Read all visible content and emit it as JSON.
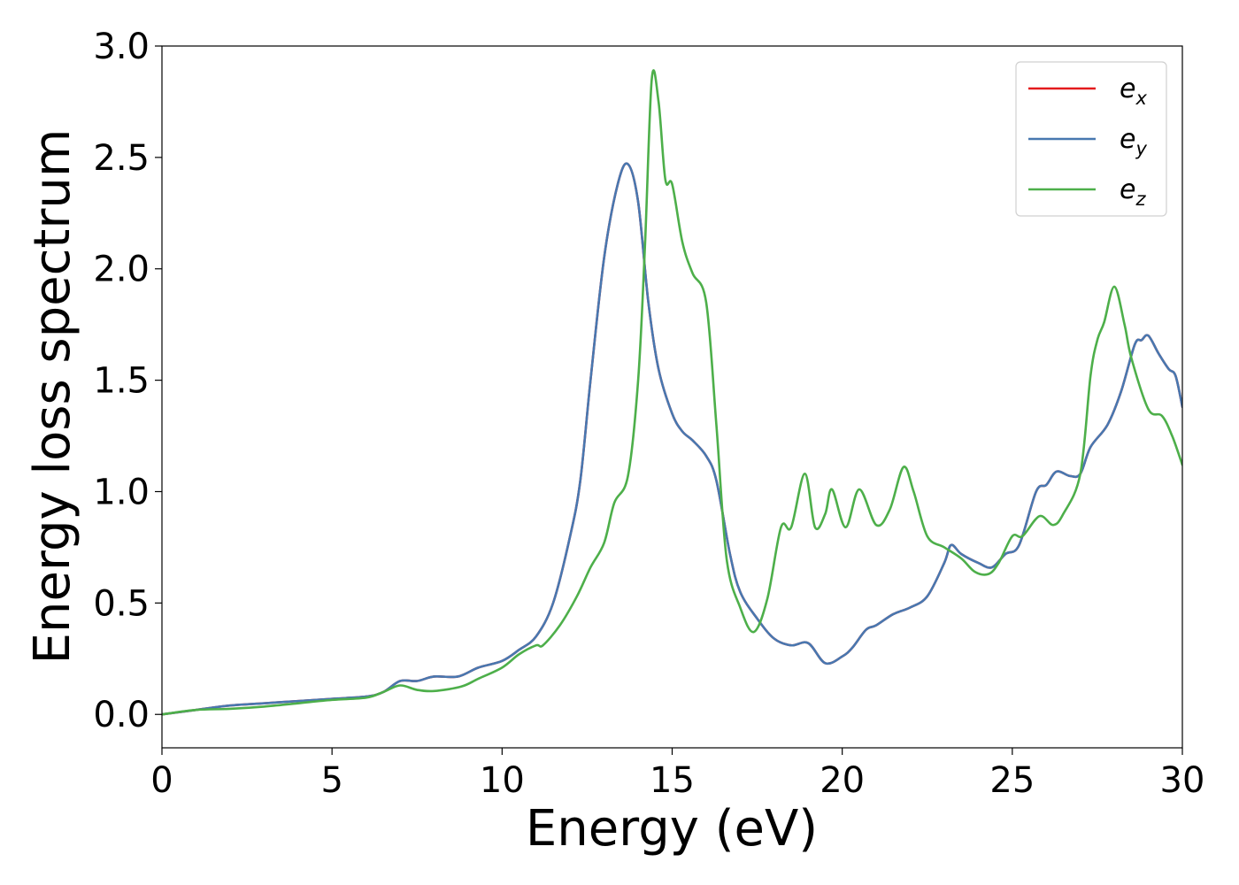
{
  "chart_data": {
    "type": "line",
    "title": "",
    "xlabel": "Energy (eV)",
    "ylabel": "Energy loss spectrum",
    "xlim": [
      0,
      30
    ],
    "ylim": [
      -0.15,
      3.0
    ],
    "xticks": [
      0,
      5,
      10,
      15,
      20,
      25,
      30
    ],
    "xtick_labels": [
      "0",
      "5",
      "10",
      "15",
      "20",
      "25",
      "30"
    ],
    "yticks": [
      0.0,
      0.5,
      1.0,
      1.5,
      2.0,
      2.5,
      3.0
    ],
    "ytick_labels": [
      "0.0",
      "0.5",
      "1.0",
      "1.5",
      "2.0",
      "2.5",
      "3.0"
    ],
    "grid": false,
    "legend_position": "top-right",
    "series": [
      {
        "name": "e",
        "subscript": "x",
        "color": "#e41a1c",
        "points": [
          [
            0,
            0
          ],
          [
            1,
            0.02
          ],
          [
            2,
            0.04
          ],
          [
            3,
            0.05
          ],
          [
            4,
            0.06
          ],
          [
            5,
            0.07
          ],
          [
            6,
            0.08
          ],
          [
            6.5,
            0.1
          ],
          [
            7,
            0.15
          ],
          [
            7.5,
            0.15
          ],
          [
            8,
            0.17
          ],
          [
            8.7,
            0.17
          ],
          [
            9.3,
            0.21
          ],
          [
            10,
            0.24
          ],
          [
            10.5,
            0.29
          ],
          [
            11,
            0.35
          ],
          [
            11.5,
            0.5
          ],
          [
            12,
            0.8
          ],
          [
            12.3,
            1.05
          ],
          [
            12.6,
            1.5
          ],
          [
            13,
            2.05
          ],
          [
            13.4,
            2.38
          ],
          [
            13.7,
            2.47
          ],
          [
            14,
            2.3
          ],
          [
            14.3,
            1.85
          ],
          [
            14.6,
            1.55
          ],
          [
            15,
            1.35
          ],
          [
            15.3,
            1.27
          ],
          [
            15.6,
            1.23
          ],
          [
            16,
            1.16
          ],
          [
            16.3,
            1.05
          ],
          [
            16.7,
            0.72
          ],
          [
            17,
            0.55
          ],
          [
            17.5,
            0.43
          ],
          [
            18,
            0.34
          ],
          [
            18.5,
            0.31
          ],
          [
            19,
            0.32
          ],
          [
            19.5,
            0.23
          ],
          [
            20,
            0.26
          ],
          [
            20.3,
            0.3
          ],
          [
            20.7,
            0.38
          ],
          [
            21,
            0.4
          ],
          [
            21.5,
            0.45
          ],
          [
            22,
            0.48
          ],
          [
            22.5,
            0.53
          ],
          [
            23,
            0.68
          ],
          [
            23.2,
            0.76
          ],
          [
            23.5,
            0.72
          ],
          [
            24,
            0.68
          ],
          [
            24.4,
            0.66
          ],
          [
            24.8,
            0.72
          ],
          [
            25.2,
            0.76
          ],
          [
            25.7,
            1.0
          ],
          [
            26,
            1.03
          ],
          [
            26.3,
            1.09
          ],
          [
            26.7,
            1.07
          ],
          [
            27,
            1.08
          ],
          [
            27.3,
            1.2
          ],
          [
            27.8,
            1.3
          ],
          [
            28.2,
            1.45
          ],
          [
            28.6,
            1.66
          ],
          [
            28.8,
            1.68
          ],
          [
            29,
            1.7
          ],
          [
            29.3,
            1.62
          ],
          [
            29.6,
            1.55
          ],
          [
            29.8,
            1.52
          ],
          [
            30,
            1.38
          ]
        ]
      },
      {
        "name": "e",
        "subscript": "y",
        "color": "#4878b0",
        "points": [
          [
            0,
            0
          ],
          [
            1,
            0.02
          ],
          [
            2,
            0.04
          ],
          [
            3,
            0.05
          ],
          [
            4,
            0.06
          ],
          [
            5,
            0.07
          ],
          [
            6,
            0.08
          ],
          [
            6.5,
            0.1
          ],
          [
            7,
            0.15
          ],
          [
            7.5,
            0.15
          ],
          [
            8,
            0.17
          ],
          [
            8.7,
            0.17
          ],
          [
            9.3,
            0.21
          ],
          [
            10,
            0.24
          ],
          [
            10.5,
            0.29
          ],
          [
            11,
            0.35
          ],
          [
            11.5,
            0.5
          ],
          [
            12,
            0.8
          ],
          [
            12.3,
            1.05
          ],
          [
            12.6,
            1.5
          ],
          [
            13,
            2.05
          ],
          [
            13.4,
            2.38
          ],
          [
            13.7,
            2.47
          ],
          [
            14,
            2.3
          ],
          [
            14.3,
            1.85
          ],
          [
            14.6,
            1.55
          ],
          [
            15,
            1.35
          ],
          [
            15.3,
            1.27
          ],
          [
            15.6,
            1.23
          ],
          [
            16,
            1.16
          ],
          [
            16.3,
            1.05
          ],
          [
            16.7,
            0.72
          ],
          [
            17,
            0.55
          ],
          [
            17.5,
            0.43
          ],
          [
            18,
            0.34
          ],
          [
            18.5,
            0.31
          ],
          [
            19,
            0.32
          ],
          [
            19.5,
            0.23
          ],
          [
            20,
            0.26
          ],
          [
            20.3,
            0.3
          ],
          [
            20.7,
            0.38
          ],
          [
            21,
            0.4
          ],
          [
            21.5,
            0.45
          ],
          [
            22,
            0.48
          ],
          [
            22.5,
            0.53
          ],
          [
            23,
            0.68
          ],
          [
            23.2,
            0.76
          ],
          [
            23.5,
            0.72
          ],
          [
            24,
            0.68
          ],
          [
            24.4,
            0.66
          ],
          [
            24.8,
            0.72
          ],
          [
            25.2,
            0.76
          ],
          [
            25.7,
            1.0
          ],
          [
            26,
            1.03
          ],
          [
            26.3,
            1.09
          ],
          [
            26.7,
            1.07
          ],
          [
            27,
            1.08
          ],
          [
            27.3,
            1.2
          ],
          [
            27.8,
            1.3
          ],
          [
            28.2,
            1.45
          ],
          [
            28.6,
            1.66
          ],
          [
            28.8,
            1.68
          ],
          [
            29,
            1.7
          ],
          [
            29.3,
            1.62
          ],
          [
            29.6,
            1.55
          ],
          [
            29.8,
            1.52
          ],
          [
            30,
            1.38
          ]
        ]
      },
      {
        "name": "e",
        "subscript": "z",
        "color": "#4daf4a",
        "points": [
          [
            0,
            0
          ],
          [
            1,
            0.02
          ],
          [
            2,
            0.025
          ],
          [
            3,
            0.035
          ],
          [
            4,
            0.05
          ],
          [
            5,
            0.065
          ],
          [
            6,
            0.075
          ],
          [
            6.5,
            0.1
          ],
          [
            7,
            0.13
          ],
          [
            7.5,
            0.11
          ],
          [
            8,
            0.105
          ],
          [
            8.8,
            0.125
          ],
          [
            9.3,
            0.16
          ],
          [
            10,
            0.21
          ],
          [
            10.5,
            0.27
          ],
          [
            11,
            0.31
          ],
          [
            11.2,
            0.31
          ],
          [
            11.7,
            0.4
          ],
          [
            12.2,
            0.53
          ],
          [
            12.6,
            0.66
          ],
          [
            13,
            0.77
          ],
          [
            13.3,
            0.95
          ],
          [
            13.7,
            1.07
          ],
          [
            14,
            1.5
          ],
          [
            14.2,
            2.1
          ],
          [
            14.4,
            2.85
          ],
          [
            14.6,
            2.75
          ],
          [
            14.8,
            2.4
          ],
          [
            15,
            2.38
          ],
          [
            15.3,
            2.12
          ],
          [
            15.6,
            1.98
          ],
          [
            16,
            1.85
          ],
          [
            16.3,
            1.3
          ],
          [
            16.6,
            0.7
          ],
          [
            17,
            0.48
          ],
          [
            17.4,
            0.37
          ],
          [
            17.8,
            0.52
          ],
          [
            18.2,
            0.84
          ],
          [
            18.5,
            0.84
          ],
          [
            18.9,
            1.08
          ],
          [
            19.2,
            0.84
          ],
          [
            19.5,
            0.9
          ],
          [
            19.7,
            1.01
          ],
          [
            20.1,
            0.84
          ],
          [
            20.5,
            1.01
          ],
          [
            21,
            0.85
          ],
          [
            21.4,
            0.92
          ],
          [
            21.8,
            1.11
          ],
          [
            22.1,
            1.0
          ],
          [
            22.5,
            0.8
          ],
          [
            23,
            0.75
          ],
          [
            23.5,
            0.7
          ],
          [
            23.9,
            0.64
          ],
          [
            24.3,
            0.63
          ],
          [
            24.6,
            0.68
          ],
          [
            25,
            0.8
          ],
          [
            25.3,
            0.8
          ],
          [
            25.8,
            0.89
          ],
          [
            26.2,
            0.85
          ],
          [
            26.5,
            0.9
          ],
          [
            27,
            1.08
          ],
          [
            27.3,
            1.52
          ],
          [
            27.5,
            1.68
          ],
          [
            27.7,
            1.76
          ],
          [
            28,
            1.92
          ],
          [
            28.3,
            1.75
          ],
          [
            28.5,
            1.6
          ],
          [
            29,
            1.37
          ],
          [
            29.4,
            1.34
          ],
          [
            29.7,
            1.25
          ],
          [
            30,
            1.12
          ]
        ]
      }
    ]
  }
}
